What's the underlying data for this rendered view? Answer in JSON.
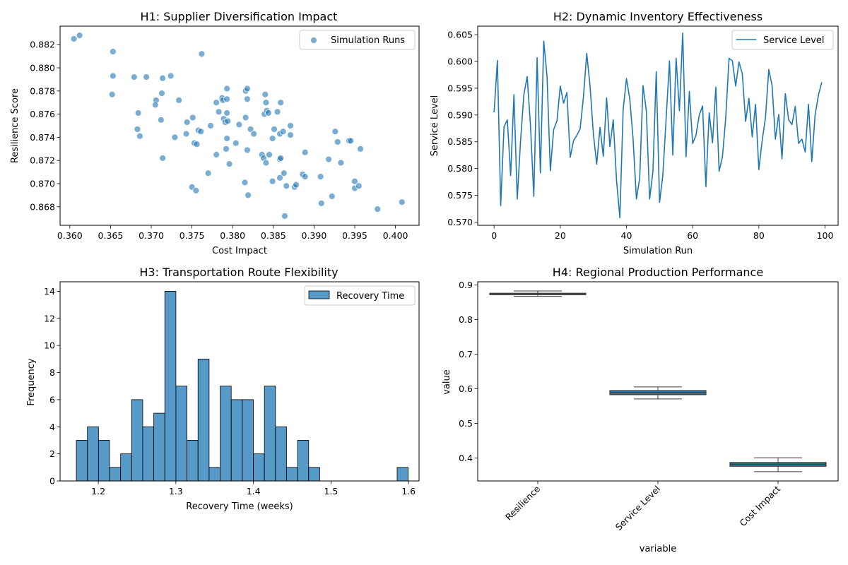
{
  "chart_data": [
    {
      "type": "scatter",
      "title": "H1: Supplier Diversification Impact",
      "xlabel": "Cost Impact",
      "ylabel": "Resilience Score",
      "xlim": [
        0.3588,
        0.4029
      ],
      "ylim": [
        0.8664,
        0.8836
      ],
      "xticks": [
        "0.360",
        "0.365",
        "0.370",
        "0.375",
        "0.380",
        "0.385",
        "0.390",
        "0.395",
        "0.400"
      ],
      "xtick_values": [
        0.36,
        0.365,
        0.37,
        0.375,
        0.38,
        0.385,
        0.39,
        0.395,
        0.4
      ],
      "yticks": [
        "0.868",
        "0.870",
        "0.872",
        "0.874",
        "0.876",
        "0.878",
        "0.880",
        "0.882"
      ],
      "ytick_values": [
        0.868,
        0.87,
        0.872,
        0.874,
        0.876,
        0.878,
        0.88,
        0.882
      ],
      "legend": {
        "label": "Simulation Runs",
        "position": "top-right"
      },
      "color": "#1f77b4",
      "points": [
        [
          0.3605,
          0.8825
        ],
        [
          0.3612,
          0.8828
        ],
        [
          0.3653,
          0.8814
        ],
        [
          0.3653,
          0.8793
        ],
        [
          0.3652,
          0.8777
        ],
        [
          0.3679,
          0.8792
        ],
        [
          0.3694,
          0.8792
        ],
        [
          0.3714,
          0.8791
        ],
        [
          0.3724,
          0.8793
        ],
        [
          0.3762,
          0.8812
        ],
        [
          0.3684,
          0.8761
        ],
        [
          0.3706,
          0.8772
        ],
        [
          0.3705,
          0.8768
        ],
        [
          0.3713,
          0.8778
        ],
        [
          0.3734,
          0.8772
        ],
        [
          0.3683,
          0.8747
        ],
        [
          0.3686,
          0.8741
        ],
        [
          0.3712,
          0.8755
        ],
        [
          0.3729,
          0.874
        ],
        [
          0.3743,
          0.8743
        ],
        [
          0.3744,
          0.8753
        ],
        [
          0.3751,
          0.8757
        ],
        [
          0.3758,
          0.8746
        ],
        [
          0.3761,
          0.8745
        ],
        [
          0.3753,
          0.8735
        ],
        [
          0.3756,
          0.8734
        ],
        [
          0.3714,
          0.8722
        ],
        [
          0.375,
          0.8697
        ],
        [
          0.3755,
          0.8694
        ],
        [
          0.377,
          0.8709
        ],
        [
          0.3773,
          0.875
        ],
        [
          0.378,
          0.8725
        ],
        [
          0.378,
          0.877
        ],
        [
          0.3783,
          0.8762
        ],
        [
          0.3787,
          0.8774
        ],
        [
          0.3788,
          0.8772
        ],
        [
          0.3789,
          0.8756
        ],
        [
          0.3791,
          0.8753
        ],
        [
          0.3793,
          0.8773
        ],
        [
          0.3793,
          0.8782
        ],
        [
          0.3793,
          0.8761
        ],
        [
          0.3794,
          0.8754
        ],
        [
          0.3793,
          0.8739
        ],
        [
          0.3792,
          0.873
        ],
        [
          0.3796,
          0.8717
        ],
        [
          0.3804,
          0.8735
        ],
        [
          0.3808,
          0.8751
        ],
        [
          0.3815,
          0.8701
        ],
        [
          0.3816,
          0.8757
        ],
        [
          0.3816,
          0.878
        ],
        [
          0.3818,
          0.8782
        ],
        [
          0.3818,
          0.8773
        ],
        [
          0.3818,
          0.8729
        ],
        [
          0.3819,
          0.869
        ],
        [
          0.3822,
          0.8747
        ],
        [
          0.3826,
          0.8743
        ],
        [
          0.3836,
          0.8725
        ],
        [
          0.3838,
          0.8722
        ],
        [
          0.3839,
          0.876
        ],
        [
          0.384,
          0.8777
        ],
        [
          0.3841,
          0.877
        ],
        [
          0.3841,
          0.8718
        ],
        [
          0.3842,
          0.8763
        ],
        [
          0.3844,
          0.8761
        ],
        [
          0.3845,
          0.8725
        ],
        [
          0.3849,
          0.8702
        ],
        [
          0.3849,
          0.8739
        ],
        [
          0.3851,
          0.8747
        ],
        [
          0.3855,
          0.8762
        ],
        [
          0.3859,
          0.877
        ],
        [
          0.3858,
          0.8743
        ],
        [
          0.3858,
          0.8721
        ],
        [
          0.3859,
          0.8722
        ],
        [
          0.3858,
          0.8705
        ],
        [
          0.3862,
          0.8745
        ],
        [
          0.3863,
          0.8709
        ],
        [
          0.3864,
          0.8672
        ],
        [
          0.3866,
          0.8698
        ],
        [
          0.3871,
          0.875
        ],
        [
          0.3871,
          0.8742
        ],
        [
          0.3876,
          0.8697
        ],
        [
          0.3878,
          0.8699
        ],
        [
          0.3886,
          0.8708
        ],
        [
          0.3889,
          0.8727
        ],
        [
          0.3889,
          0.8706
        ],
        [
          0.3908,
          0.8706
        ],
        [
          0.3909,
          0.8683
        ],
        [
          0.3918,
          0.8721
        ],
        [
          0.3922,
          0.8689
        ],
        [
          0.3926,
          0.8745
        ],
        [
          0.3929,
          0.8736
        ],
        [
          0.3933,
          0.8718
        ],
        [
          0.3943,
          0.8737
        ],
        [
          0.3945,
          0.8737
        ],
        [
          0.395,
          0.8702
        ],
        [
          0.395,
          0.8696
        ],
        [
          0.3955,
          0.8698
        ],
        [
          0.3957,
          0.873
        ],
        [
          0.3978,
          0.8678
        ],
        [
          0.4008,
          0.8684
        ]
      ]
    },
    {
      "type": "line",
      "title": "H2: Dynamic Inventory Effectiveness",
      "xlabel": "Simulation Run",
      "ylabel": "Service Level",
      "xlim": [
        -4.95,
        103.95
      ],
      "ylim": [
        0.5694,
        0.6066
      ],
      "xticks": [
        "0",
        "20",
        "40",
        "60",
        "80",
        "100"
      ],
      "xtick_values": [
        0,
        20,
        40,
        60,
        80,
        100
      ],
      "yticks": [
        "0.570",
        "0.575",
        "0.580",
        "0.585",
        "0.590",
        "0.595",
        "0.600",
        "0.605"
      ],
      "ytick_values": [
        0.57,
        0.575,
        0.58,
        0.585,
        0.59,
        0.595,
        0.6,
        0.605
      ],
      "legend": {
        "label": "Service Level",
        "position": "top-right"
      },
      "color": "#1f77b4",
      "values": [
        0.5905,
        0.6002,
        0.5731,
        0.5878,
        0.5891,
        0.5787,
        0.5938,
        0.5743,
        0.5852,
        0.5938,
        0.5972,
        0.588,
        0.5748,
        0.6007,
        0.5792,
        0.6038,
        0.5972,
        0.5796,
        0.5873,
        0.5889,
        0.5954,
        0.5922,
        0.5942,
        0.5821,
        0.5852,
        0.5862,
        0.5874,
        0.5934,
        0.6015,
        0.5954,
        0.5865,
        0.5808,
        0.5877,
        0.5823,
        0.5932,
        0.5841,
        0.5891,
        0.5778,
        0.5708,
        0.591,
        0.5968,
        0.593,
        0.5855,
        0.5743,
        0.5782,
        0.5955,
        0.5908,
        0.5743,
        0.5795,
        0.5981,
        0.5737,
        0.5788,
        0.5895,
        0.6001,
        0.5825,
        0.6006,
        0.5908,
        0.6053,
        0.5822,
        0.5944,
        0.5847,
        0.5862,
        0.59,
        0.5917,
        0.5766,
        0.5904,
        0.5848,
        0.5952,
        0.5795,
        0.5822,
        0.5895,
        0.6006,
        0.6001,
        0.5954,
        0.5999,
        0.5977,
        0.5888,
        0.5931,
        0.5859,
        0.592,
        0.5798,
        0.5852,
        0.5895,
        0.5985,
        0.5955,
        0.5855,
        0.5901,
        0.5818,
        0.594,
        0.5891,
        0.5882,
        0.5916,
        0.5847,
        0.5855,
        0.5831,
        0.592,
        0.5813,
        0.59,
        0.5937,
        0.5961
      ]
    },
    {
      "type": "bar",
      "title": "H3: Transportation Route Flexibility",
      "xlabel": "Recovery Time (weeks)",
      "ylabel": "Frequency",
      "xlim": [
        1.1507,
        1.6135
      ],
      "ylim": [
        0,
        14.7
      ],
      "xticks": [
        "1.2",
        "1.3",
        "1.4",
        "1.5",
        "1.6"
      ],
      "xtick_values": [
        1.2,
        1.3,
        1.4,
        1.5,
        1.6
      ],
      "yticks": [
        "0",
        "2",
        "4",
        "6",
        "8",
        "10",
        "12",
        "14"
      ],
      "ytick_values": [
        0,
        2,
        4,
        6,
        8,
        10,
        12,
        14
      ],
      "legend": {
        "label": "Recovery Time",
        "position": "top-right"
      },
      "color": "#1f77b4",
      "bin_start": 1.1717,
      "bin_width": 0.01426,
      "counts": [
        3,
        4,
        3,
        1,
        2,
        6,
        4,
        5,
        14,
        7,
        3,
        9,
        1,
        7,
        6,
        6,
        2,
        7,
        4,
        1,
        3,
        1,
        0,
        0,
        0,
        0,
        0,
        0,
        0,
        1
      ]
    },
    {
      "type": "box",
      "title": "H4: Regional Production Performance",
      "xlabel": "variable",
      "ylabel": "value",
      "ylim": [
        0.3336,
        0.9094
      ],
      "yticks": [
        "0.4",
        "0.5",
        "0.6",
        "0.7",
        "0.8",
        "0.9"
      ],
      "ytick_values": [
        0.4,
        0.5,
        0.6,
        0.7,
        0.8,
        0.9
      ],
      "color": "#1f77b4",
      "categories": [
        "Resilience",
        "Service Level",
        "Cost Impact"
      ],
      "boxes": [
        {
          "whislo": 0.8672,
          "q1": 0.8721,
          "med": 0.8742,
          "q3": 0.8763,
          "whishi": 0.8828
        },
        {
          "whislo": 0.5708,
          "q1": 0.583,
          "med": 0.5892,
          "q3": 0.595,
          "whishi": 0.6053
        },
        {
          "whislo": 0.3605,
          "q1": 0.376,
          "med": 0.382,
          "q3": 0.387,
          "whishi": 0.4008
        }
      ]
    }
  ]
}
